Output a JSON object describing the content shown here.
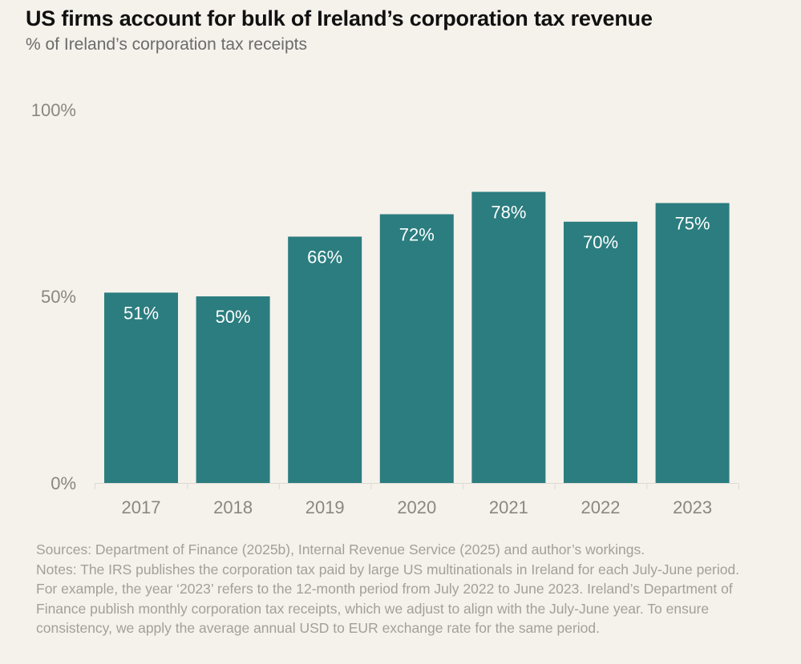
{
  "title": "US firms account for bulk of Ireland’s corporation tax revenue",
  "subtitle": "% of Ireland’s corporation tax receipts",
  "colors": {
    "bar": "#2b7d7f",
    "bar_label": "#ffffff",
    "axis_text": "#8a8783",
    "axis_line": "#dddad4",
    "background": "#f5f1eb"
  },
  "chart_data": {
    "type": "bar",
    "categories": [
      "2017",
      "2018",
      "2019",
      "2020",
      "2021",
      "2022",
      "2023"
    ],
    "values": [
      51,
      50,
      66,
      72,
      78,
      70,
      75
    ],
    "data_labels": [
      "51%",
      "50%",
      "66%",
      "72%",
      "78%",
      "70%",
      "75%"
    ],
    "yticks": [
      0,
      50,
      100
    ],
    "ytick_labels": [
      "0%",
      "50%",
      "100%"
    ],
    "ylim": [
      0,
      100
    ],
    "xlabel": "",
    "ylabel": "",
    "grid": false,
    "legend": "none"
  },
  "notes": {
    "sources": "Sources: Department of Finance (2025b), Internal Revenue Service (2025) and author’s workings.",
    "text": "Notes: The IRS publishes the corporation tax paid by large US multinationals in Ireland for each July-June period. For example, the year ‘2023’ refers to the 12-month period from July 2022 to June 2023. Ireland’s Department of Finance publish monthly corporation tax receipts, which we adjust to align with the July-June year. To ensure consistency, we apply the average annual USD to EUR exchange rate for the same period."
  }
}
